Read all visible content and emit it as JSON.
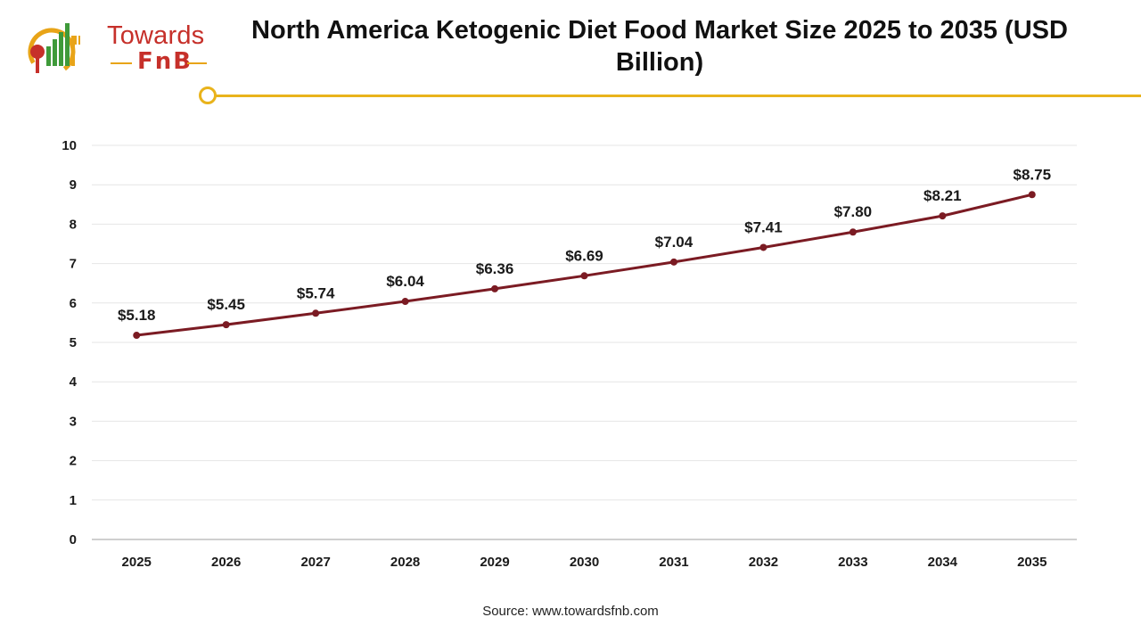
{
  "brand": {
    "line1": "Towards",
    "line2": "FnB"
  },
  "title": "North America Ketogenic Diet Food Market Size 2025 to 2035 (USD Billion)",
  "source": "Source: www.towardsfnb.com",
  "colors": {
    "line": "#7b1b23",
    "accent": "#e9b31b",
    "brand": "#c6302a",
    "grid": "#e6e6e6"
  },
  "chart_data": {
    "type": "line",
    "title": "North America Ketogenic Diet Food Market Size 2025 to 2035 (USD Billion)",
    "categories": [
      "2025",
      "2026",
      "2027",
      "2028",
      "2029",
      "2030",
      "2031",
      "2032",
      "2033",
      "2034",
      "2035"
    ],
    "values": [
      5.18,
      5.45,
      5.74,
      6.04,
      6.36,
      6.69,
      7.04,
      7.41,
      7.8,
      8.21,
      8.75
    ],
    "data_labels": [
      "$5.18",
      "$5.45",
      "$5.74",
      "$6.04",
      "$6.36",
      "$6.69",
      "$7.04",
      "$7.41",
      "$7.80",
      "$8.21",
      "$8.75"
    ],
    "yticks": [
      "0",
      "1",
      "2",
      "3",
      "4",
      "5",
      "6",
      "7",
      "8",
      "9",
      "10"
    ],
    "ylim": [
      0,
      10
    ],
    "xlabel": "",
    "ylabel": "",
    "grid": true,
    "legend": "none"
  }
}
